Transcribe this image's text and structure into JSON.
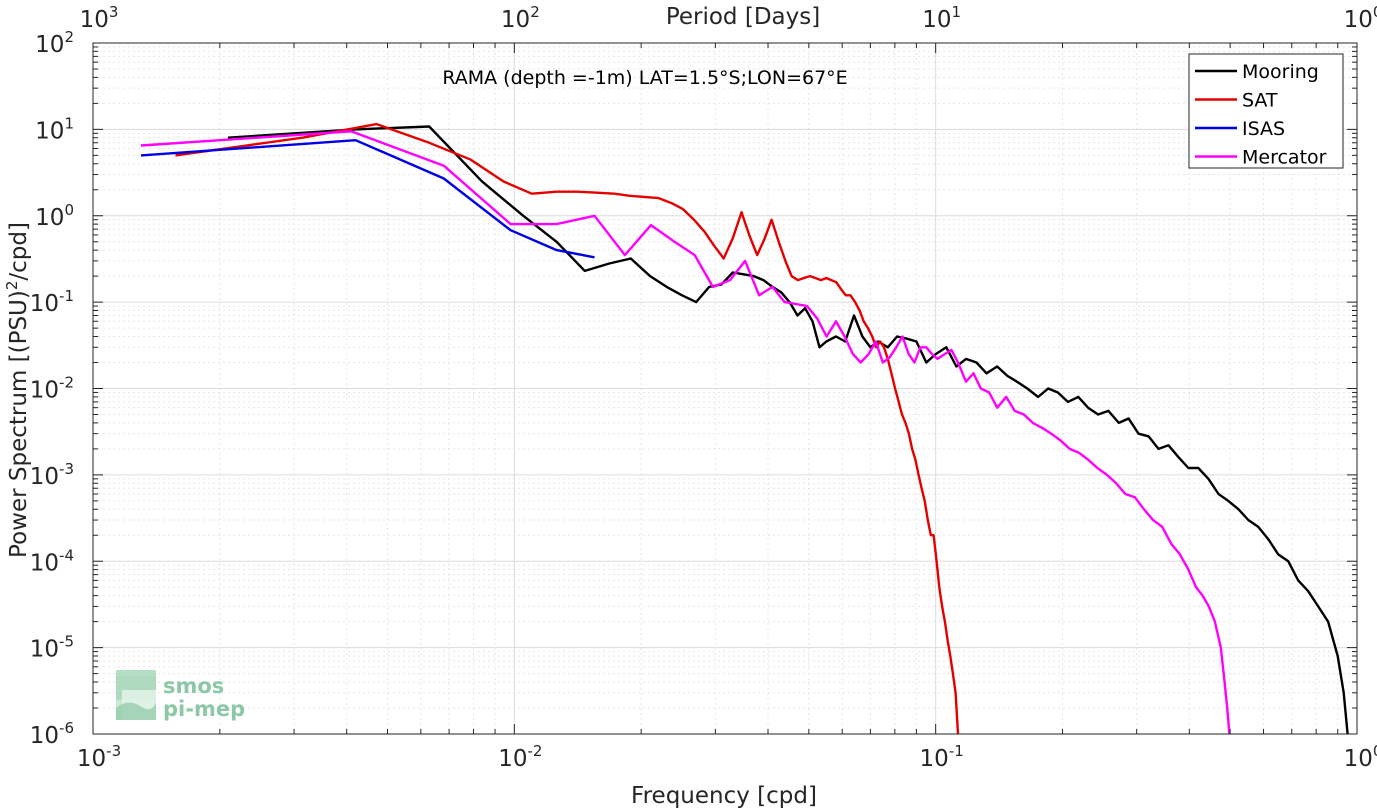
{
  "chart_data": {
    "type": "line",
    "x_scale": "log",
    "y_scale": "log",
    "xlim": [
      0.001,
      1
    ],
    "ylim": [
      1e-06,
      100
    ],
    "xlabel": "Frequency [cpd]",
    "ylabel": "Power Spectrum [(PSU)",
    "ylabel_sup": "2",
    "ylabel_tail": "/cpd]",
    "top_axis_label": "Period [Days]",
    "annotation": "RAMA (depth =-1m) LAT=1.5°S;LON=67°E",
    "grid": true,
    "legend_position": "top-right",
    "x_ticks": [
      {
        "base": "10",
        "exp": "-3"
      },
      {
        "base": "10",
        "exp": "-2"
      },
      {
        "base": "10",
        "exp": "-1"
      },
      {
        "base": "10",
        "exp": "0"
      }
    ],
    "top_ticks": [
      {
        "base": "10",
        "exp": "3"
      },
      {
        "base": "10",
        "exp": "2"
      },
      {
        "base": "10",
        "exp": "1"
      },
      {
        "base": "10",
        "exp": "0"
      }
    ],
    "y_ticks": [
      {
        "base": "10",
        "exp": "2"
      },
      {
        "base": "10",
        "exp": "1"
      },
      {
        "base": "10",
        "exp": "0"
      },
      {
        "base": "10",
        "exp": "-1"
      },
      {
        "base": "10",
        "exp": "-2"
      },
      {
        "base": "10",
        "exp": "-3"
      },
      {
        "base": "10",
        "exp": "-4"
      },
      {
        "base": "10",
        "exp": "-5"
      },
      {
        "base": "10",
        "exp": "-6"
      }
    ],
    "series": [
      {
        "name": "Mooring",
        "color": "#000000",
        "x": [
          0.00209,
          0.00419,
          0.00628,
          0.00838,
          0.0105,
          0.0126,
          0.0147,
          0.0168,
          0.0189,
          0.021,
          0.023,
          0.025,
          0.027,
          0.029,
          0.031,
          0.033,
          0.035,
          0.037,
          0.039,
          0.041,
          0.043,
          0.045,
          0.047,
          0.049,
          0.051,
          0.053,
          0.055,
          0.058,
          0.061,
          0.064,
          0.067,
          0.07,
          0.073,
          0.077,
          0.081,
          0.085,
          0.09,
          0.095,
          0.1,
          0.106,
          0.112,
          0.118,
          0.125,
          0.132,
          0.14,
          0.148,
          0.156,
          0.165,
          0.175,
          0.185,
          0.195,
          0.206,
          0.218,
          0.23,
          0.243,
          0.257,
          0.272,
          0.287,
          0.303,
          0.32,
          0.338,
          0.357,
          0.377,
          0.398,
          0.42,
          0.444,
          0.469,
          0.495,
          0.523,
          0.552,
          0.583,
          0.616,
          0.65,
          0.687,
          0.725,
          0.766,
          0.809,
          0.854,
          0.9,
          0.93,
          0.95
        ],
        "y": [
          8.0,
          10.0,
          10.8,
          2.5,
          1.0,
          0.5,
          0.23,
          0.28,
          0.32,
          0.2,
          0.15,
          0.12,
          0.1,
          0.15,
          0.16,
          0.22,
          0.21,
          0.2,
          0.18,
          0.15,
          0.13,
          0.1,
          0.07,
          0.085,
          0.06,
          0.03,
          0.035,
          0.04,
          0.035,
          0.07,
          0.04,
          0.03,
          0.035,
          0.03,
          0.04,
          0.038,
          0.035,
          0.02,
          0.025,
          0.03,
          0.018,
          0.022,
          0.02,
          0.015,
          0.018,
          0.014,
          0.012,
          0.01,
          0.008,
          0.01,
          0.009,
          0.007,
          0.008,
          0.006,
          0.005,
          0.0055,
          0.004,
          0.0045,
          0.003,
          0.0028,
          0.002,
          0.0022,
          0.0016,
          0.0012,
          0.0012,
          0.0009,
          0.0006,
          0.0005,
          0.0004,
          0.0003,
          0.00025,
          0.00018,
          0.00012,
          0.0001,
          6e-05,
          4.5e-05,
          3e-05,
          2e-05,
          8e-06,
          3e-06,
          1e-06
        ]
      },
      {
        "name": "SAT",
        "color": "#e50000",
        "x": [
          0.00157,
          0.00314,
          0.00471,
          0.00628,
          0.00785,
          0.00942,
          0.011,
          0.0126,
          0.0141,
          0.0157,
          0.0173,
          0.0188,
          0.0204,
          0.022,
          0.0236,
          0.0251,
          0.0267,
          0.0283,
          0.0298,
          0.0314,
          0.033,
          0.0346,
          0.0361,
          0.0377,
          0.0393,
          0.0408,
          0.0424,
          0.044,
          0.0455,
          0.0471,
          0.0487,
          0.0503,
          0.0518,
          0.0534,
          0.055,
          0.0565,
          0.0581,
          0.0597,
          0.0612,
          0.0628,
          0.0644,
          0.066,
          0.0675,
          0.0691,
          0.0707,
          0.0722,
          0.0738,
          0.0754,
          0.077,
          0.0785,
          0.0801,
          0.0817,
          0.0832,
          0.0848,
          0.0864,
          0.0879,
          0.0895,
          0.0911,
          0.0926,
          0.0942,
          0.0958,
          0.0974,
          0.0989,
          0.1005,
          0.102,
          0.1036,
          0.1052,
          0.1068,
          0.1083,
          0.1099,
          0.1115,
          0.113
        ],
        "y": [
          5.0,
          8.0,
          11.5,
          7.0,
          4.5,
          2.5,
          1.8,
          1.9,
          1.9,
          1.85,
          1.8,
          1.7,
          1.65,
          1.6,
          1.4,
          1.2,
          0.9,
          0.65,
          0.45,
          0.32,
          0.55,
          1.1,
          0.6,
          0.35,
          0.55,
          0.9,
          0.5,
          0.3,
          0.2,
          0.18,
          0.19,
          0.2,
          0.19,
          0.18,
          0.19,
          0.18,
          0.17,
          0.14,
          0.12,
          0.12,
          0.1,
          0.08,
          0.06,
          0.05,
          0.04,
          0.03,
          0.035,
          0.03,
          0.022,
          0.015,
          0.01,
          0.007,
          0.005,
          0.004,
          0.003,
          0.002,
          0.0015,
          0.001,
          0.0007,
          0.0005,
          0.0003,
          0.0002,
          0.0002,
          0.0001,
          5e-05,
          3e-05,
          2e-05,
          1.2e-05,
          8e-06,
          5e-06,
          3e-06,
          1e-06
        ]
      },
      {
        "name": "ISAS",
        "color": "#0000e5",
        "x": [
          0.0013,
          0.0042,
          0.0068,
          0.0098,
          0.0126,
          0.0155
        ],
        "y": [
          5.0,
          7.5,
          2.7,
          0.68,
          0.4,
          0.33
        ]
      },
      {
        "name": "Mercator",
        "color": "#ff00ff",
        "x": [
          0.0013,
          0.0041,
          0.0068,
          0.0098,
          0.0126,
          0.0155,
          0.0183,
          0.0211,
          0.024,
          0.0268,
          0.0296,
          0.0325,
          0.0353,
          0.0381,
          0.041,
          0.0438,
          0.0466,
          0.0495,
          0.0523,
          0.0551,
          0.058,
          0.0608,
          0.0636,
          0.0664,
          0.0693,
          0.0721,
          0.0749,
          0.0778,
          0.0806,
          0.0834,
          0.0863,
          0.0891,
          0.092,
          0.095,
          0.098,
          0.101,
          0.105,
          0.109,
          0.113,
          0.118,
          0.123,
          0.128,
          0.134,
          0.14,
          0.147,
          0.154,
          0.162,
          0.17,
          0.179,
          0.188,
          0.198,
          0.208,
          0.219,
          0.23,
          0.242,
          0.255,
          0.268,
          0.282,
          0.297,
          0.312,
          0.328,
          0.345,
          0.362,
          0.38,
          0.398,
          0.415,
          0.43,
          0.445,
          0.46,
          0.475,
          0.485,
          0.492,
          0.498
        ],
        "y": [
          6.5,
          9.5,
          3.8,
          0.8,
          0.8,
          1.0,
          0.35,
          0.78,
          0.5,
          0.35,
          0.15,
          0.18,
          0.3,
          0.12,
          0.15,
          0.1,
          0.095,
          0.09,
          0.065,
          0.04,
          0.06,
          0.04,
          0.025,
          0.02,
          0.025,
          0.035,
          0.02,
          0.023,
          0.03,
          0.04,
          0.025,
          0.02,
          0.03,
          0.03,
          0.025,
          0.022,
          0.025,
          0.028,
          0.02,
          0.012,
          0.015,
          0.01,
          0.009,
          0.006,
          0.008,
          0.0055,
          0.005,
          0.004,
          0.0035,
          0.003,
          0.0025,
          0.002,
          0.0018,
          0.0015,
          0.0012,
          0.001,
          0.0008,
          0.0006,
          0.00055,
          0.0004,
          0.0003,
          0.00025,
          0.00016,
          0.00012,
          8e-05,
          5e-05,
          4e-05,
          3e-05,
          2e-05,
          1e-05,
          4e-06,
          2e-06,
          1e-06
        ]
      }
    ]
  },
  "logo": {
    "line1": "smos",
    "line2": "pi-mep",
    "color": "#8cc7a6"
  }
}
